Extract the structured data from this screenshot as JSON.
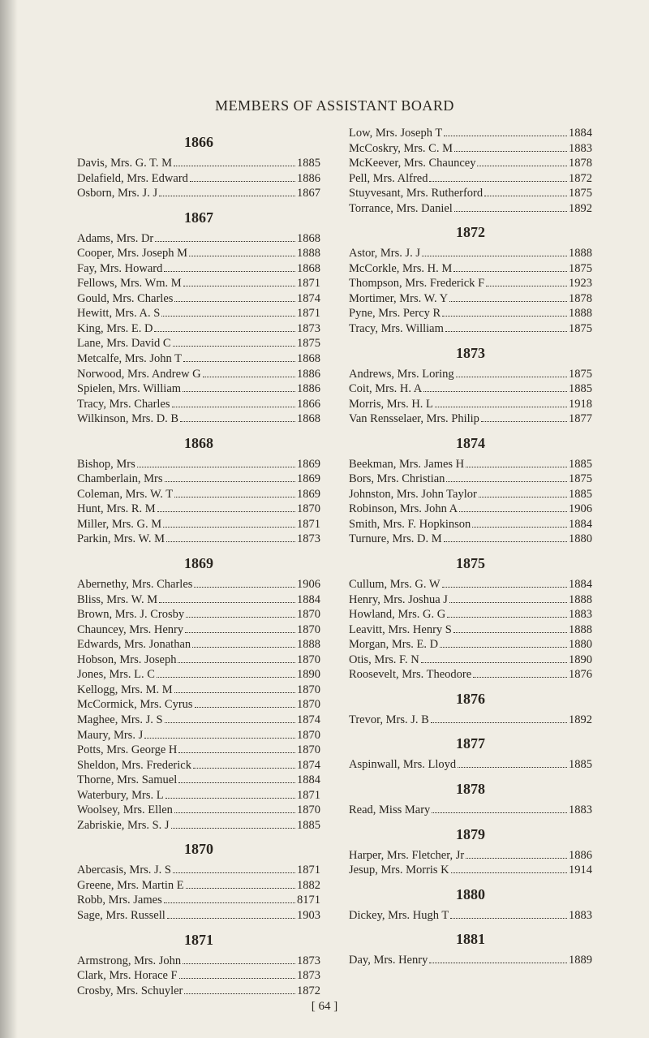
{
  "title": "MEMBERS OF ASSISTANT BOARD",
  "page_number": "[ 64 ]",
  "left": [
    {
      "year": "1866",
      "entries": [
        {
          "name": "Davis, Mrs. G. T. M",
          "val": "1885"
        },
        {
          "name": "Delafield, Mrs. Edward",
          "val": "1886"
        },
        {
          "name": "Osborn, Mrs. J. J",
          "val": "1867"
        }
      ]
    },
    {
      "year": "1867",
      "entries": [
        {
          "name": "Adams, Mrs. Dr",
          "val": "1868"
        },
        {
          "name": "Cooper, Mrs. Joseph M",
          "val": "1888"
        },
        {
          "name": "Fay, Mrs. Howard",
          "val": "1868"
        },
        {
          "name": "Fellows, Mrs. Wm. M",
          "val": "1871"
        },
        {
          "name": "Gould, Mrs. Charles",
          "val": "1874"
        },
        {
          "name": "Hewitt, Mrs. A. S",
          "val": "1871"
        },
        {
          "name": "King, Mrs. E. D",
          "val": "1873"
        },
        {
          "name": "Lane, Mrs. David C",
          "val": "1875"
        },
        {
          "name": "Metcalfe, Mrs. John T",
          "val": "1868"
        },
        {
          "name": "Norwood, Mrs. Andrew G",
          "val": "1886"
        },
        {
          "name": "Spielen, Mrs. William",
          "val": "1886"
        },
        {
          "name": "Tracy, Mrs. Charles",
          "val": "1866"
        },
        {
          "name": "Wilkinson, Mrs. D. B",
          "val": "1868"
        }
      ]
    },
    {
      "year": "1868",
      "entries": [
        {
          "name": "Bishop, Mrs",
          "val": "1869"
        },
        {
          "name": "Chamberlain, Mrs",
          "val": "1869"
        },
        {
          "name": "Coleman, Mrs. W. T",
          "val": "1869"
        },
        {
          "name": "Hunt, Mrs. R. M",
          "val": "1870"
        },
        {
          "name": "Miller, Mrs. G. M",
          "val": "1871"
        },
        {
          "name": "Parkin, Mrs. W. M",
          "val": "1873"
        }
      ]
    },
    {
      "year": "1869",
      "entries": [
        {
          "name": "Abernethy, Mrs. Charles",
          "val": "1906"
        },
        {
          "name": "Bliss, Mrs. W. M",
          "val": "1884"
        },
        {
          "name": "Brown, Mrs. J. Crosby",
          "val": "1870"
        },
        {
          "name": "Chauncey, Mrs. Henry",
          "val": "1870"
        },
        {
          "name": "Edwards, Mrs. Jonathan",
          "val": "1888"
        },
        {
          "name": "Hobson, Mrs. Joseph",
          "val": "1870"
        },
        {
          "name": "Jones, Mrs. L. C",
          "val": "1890"
        },
        {
          "name": "Kellogg, Mrs. M. M",
          "val": "1870"
        },
        {
          "name": "McCormick, Mrs. Cyrus",
          "val": "1870"
        },
        {
          "name": "Maghee, Mrs. J. S",
          "val": "1874"
        },
        {
          "name": "Maury, Mrs. J",
          "val": "1870"
        },
        {
          "name": "Potts, Mrs. George H",
          "val": "1870"
        },
        {
          "name": "Sheldon, Mrs. Frederick",
          "val": "1874"
        },
        {
          "name": "Thorne, Mrs. Samuel",
          "val": "1884"
        },
        {
          "name": "Waterbury, Mrs. L",
          "val": "1871"
        },
        {
          "name": "Woolsey, Mrs. Ellen",
          "val": "1870"
        },
        {
          "name": "Zabriskie, Mrs. S. J",
          "val": "1885"
        }
      ]
    },
    {
      "year": "1870",
      "entries": [
        {
          "name": "Abercasis, Mrs. J. S",
          "val": "1871"
        },
        {
          "name": "Greene, Mrs. Martin E",
          "val": "1882"
        },
        {
          "name": "Robb, Mrs. James",
          "val": "8171"
        },
        {
          "name": "Sage, Mrs. Russell",
          "val": "1903"
        }
      ]
    },
    {
      "year": "1871",
      "entries": [
        {
          "name": "Armstrong, Mrs. John",
          "val": "1873"
        },
        {
          "name": "Clark, Mrs. Horace F",
          "val": "1873"
        },
        {
          "name": "Crosby, Mrs. Schuyler",
          "val": "1872"
        }
      ]
    }
  ],
  "right": [
    {
      "year": null,
      "entries": [
        {
          "name": "Low, Mrs. Joseph T",
          "val": "1884"
        },
        {
          "name": "McCoskry, Mrs. C. M",
          "val": "1883"
        },
        {
          "name": "McKeever, Mrs. Chauncey",
          "val": "1878"
        },
        {
          "name": "Pell, Mrs. Alfred",
          "val": "1872"
        },
        {
          "name": "Stuyvesant, Mrs. Rutherford",
          "val": "1875"
        },
        {
          "name": "Torrance, Mrs. Daniel",
          "val": "1892"
        }
      ]
    },
    {
      "year": "1872",
      "entries": [
        {
          "name": "Astor, Mrs. J. J",
          "val": "1888"
        },
        {
          "name": "McCorkle, Mrs. H. M",
          "val": "1875"
        },
        {
          "name": "Thompson, Mrs. Frederick F",
          "val": "1923"
        },
        {
          "name": "Mortimer, Mrs. W. Y",
          "val": "1878"
        },
        {
          "name": "Pyne, Mrs. Percy R",
          "val": "1888"
        },
        {
          "name": "Tracy, Mrs. William",
          "val": "1875"
        }
      ]
    },
    {
      "year": "1873",
      "entries": [
        {
          "name": "Andrews, Mrs. Loring",
          "val": "1875"
        },
        {
          "name": "Coit, Mrs. H. A",
          "val": "1885"
        },
        {
          "name": "Morris, Mrs. H. L",
          "val": "1918"
        },
        {
          "name": "Van Rensselaer, Mrs. Philip",
          "val": "1877"
        }
      ]
    },
    {
      "year": "1874",
      "entries": [
        {
          "name": "Beekman, Mrs. James H",
          "val": "1885"
        },
        {
          "name": "Bors, Mrs. Christian",
          "val": "1875"
        },
        {
          "name": "Johnston, Mrs. John Taylor",
          "val": "1885"
        },
        {
          "name": "Robinson, Mrs. John A",
          "val": "1906"
        },
        {
          "name": "Smith, Mrs. F. Hopkinson",
          "val": "1884"
        },
        {
          "name": "Turnure, Mrs. D. M",
          "val": "1880"
        }
      ]
    },
    {
      "year": "1875",
      "entries": [
        {
          "name": "Cullum, Mrs. G. W",
          "val": "1884"
        },
        {
          "name": "Henry, Mrs. Joshua J",
          "val": "1888"
        },
        {
          "name": "Howland, Mrs. G. G",
          "val": "1883"
        },
        {
          "name": "Leavitt, Mrs. Henry S",
          "val": "1888"
        },
        {
          "name": "Morgan, Mrs. E. D",
          "val": "1880"
        },
        {
          "name": "Otis, Mrs. F. N",
          "val": "1890"
        },
        {
          "name": "Roosevelt, Mrs. Theodore",
          "val": "1876"
        }
      ]
    },
    {
      "year": "1876",
      "entries": [
        {
          "name": "Trevor, Mrs. J. B",
          "val": "1892"
        }
      ]
    },
    {
      "year": "1877",
      "entries": [
        {
          "name": "Aspinwall, Mrs. Lloyd",
          "val": "1885"
        }
      ]
    },
    {
      "year": "1878",
      "entries": [
        {
          "name": "Read, Miss Mary",
          "val": "1883"
        }
      ]
    },
    {
      "year": "1879",
      "entries": [
        {
          "name": "Harper, Mrs. Fletcher, Jr",
          "val": "1886"
        },
        {
          "name": "Jesup, Mrs. Morris K",
          "val": "1914"
        }
      ]
    },
    {
      "year": "1880",
      "entries": [
        {
          "name": "Dickey, Mrs. Hugh T",
          "val": "1883"
        }
      ]
    },
    {
      "year": "1881",
      "entries": [
        {
          "name": "Day, Mrs. Henry",
          "val": "1889"
        }
      ]
    }
  ]
}
